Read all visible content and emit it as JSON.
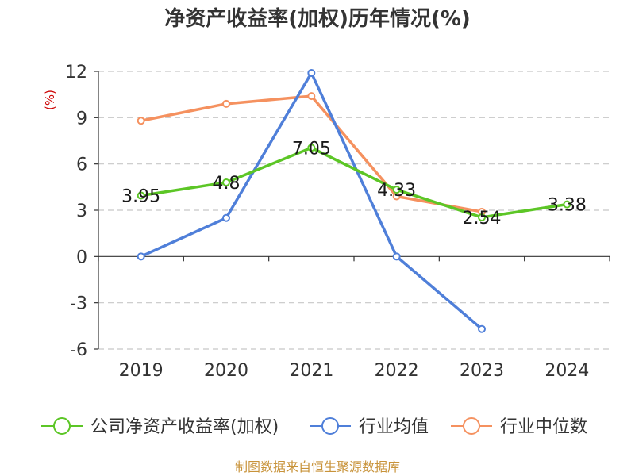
{
  "chart_data": {
    "type": "line",
    "title": "净资产收益率(加权)历年情况(%)",
    "ylabel": "(%)",
    "xlabel": "",
    "categories": [
      "2019",
      "2020",
      "2021",
      "2022",
      "2023",
      "2024"
    ],
    "ylim": [
      -6,
      12
    ],
    "yticks": [
      12,
      9,
      6,
      3,
      0,
      -3,
      -6
    ],
    "ytick_labels": [
      "12",
      "9",
      "6",
      "3",
      "0",
      "-3",
      "-6"
    ],
    "grid": "horizontal-dashed",
    "legend_position": "bottom",
    "series": [
      {
        "name": "公司净资产收益率(加权)",
        "color": "#5cc626",
        "values": [
          3.95,
          4.8,
          7.05,
          4.33,
          2.54,
          3.38
        ],
        "labels": [
          "3.95",
          "4.8",
          "7.05",
          "4.33",
          "2.54",
          "3.38"
        ]
      },
      {
        "name": "行业均值",
        "color": "#4f7fd9",
        "values": [
          0.0,
          2.5,
          11.9,
          0.0,
          -4.7,
          null
        ]
      },
      {
        "name": "行业中位数",
        "color": "#f5915f",
        "values": [
          8.8,
          9.9,
          10.4,
          3.9,
          2.9,
          null
        ]
      }
    ],
    "source": "制图数据来自恒生聚源数据库"
  }
}
